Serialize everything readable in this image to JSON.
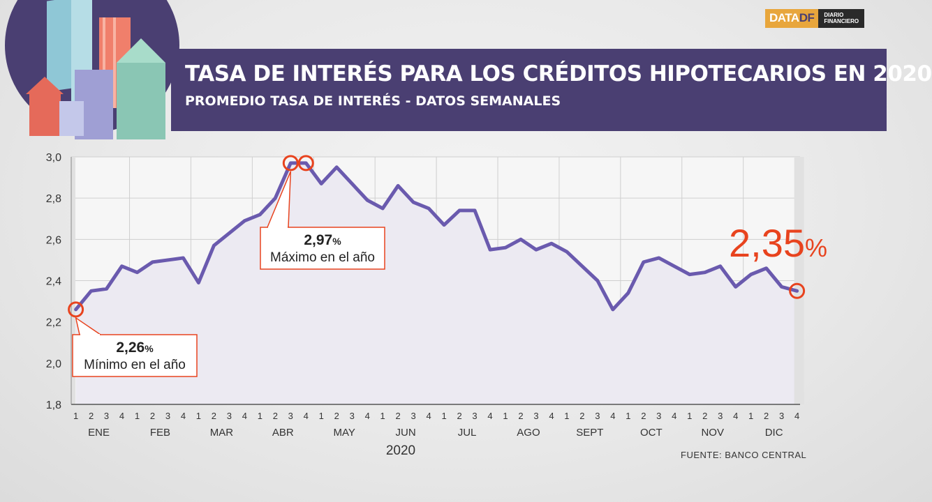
{
  "header": {
    "title": "TASA DE INTERÉS PARA LOS CRÉDITOS HIPOTECARIOS EN 2020",
    "subtitle": "PROMEDIO TASA DE INTERÉS - DATOS SEMANALES"
  },
  "brand": {
    "data": "DATA",
    "df": "DF",
    "diario_line1": "DIARIO",
    "diario_line2": "FINANCIERO"
  },
  "source": "FUENTE: BANCO CENTRAL",
  "colors": {
    "line": "#6a5aae",
    "accent": "#e8431e",
    "band": "#4a3f72",
    "area": "#f1f1f4"
  },
  "chart_data": {
    "type": "line",
    "title": "TASA DE INTERÉS PARA LOS CRÉDITOS HIPOTECARIOS EN 2020",
    "subtitle": "PROMEDIO TASA DE INTERÉS - DATOS SEMANALES",
    "xlabel": "2020",
    "ylabel": "",
    "ylim": [
      1.8,
      3.0
    ],
    "yticks": [
      "1,8",
      "2,0",
      "2,2",
      "2,4",
      "2,6",
      "2,8",
      "3,0"
    ],
    "months": [
      "ENE",
      "FEB",
      "MAR",
      "ABR",
      "MAY",
      "JUN",
      "JUL",
      "AGO",
      "SEPT",
      "OCT",
      "NOV",
      "DIC"
    ],
    "week_labels": [
      "1",
      "2",
      "3",
      "4"
    ],
    "grid": true,
    "values": [
      2.26,
      2.35,
      2.36,
      2.47,
      2.44,
      2.49,
      2.5,
      2.51,
      2.39,
      2.57,
      2.63,
      2.69,
      2.72,
      2.8,
      2.97,
      2.97,
      2.87,
      2.95,
      2.87,
      2.79,
      2.75,
      2.86,
      2.78,
      2.75,
      2.67,
      2.74,
      2.74,
      2.55,
      2.56,
      2.6,
      2.55,
      2.58,
      2.54,
      2.47,
      2.4,
      2.26,
      2.34,
      2.49,
      2.51,
      2.47,
      2.43,
      2.44,
      2.47,
      2.37,
      2.43,
      2.46,
      2.37,
      2.35
    ],
    "annotations": [
      {
        "value": "2,26",
        "unit": "%",
        "label": "Mínimo en el año"
      },
      {
        "value": "2,97",
        "unit": "%",
        "label": "Máximo en el año"
      },
      {
        "value": "2,35",
        "unit": "%"
      }
    ]
  }
}
